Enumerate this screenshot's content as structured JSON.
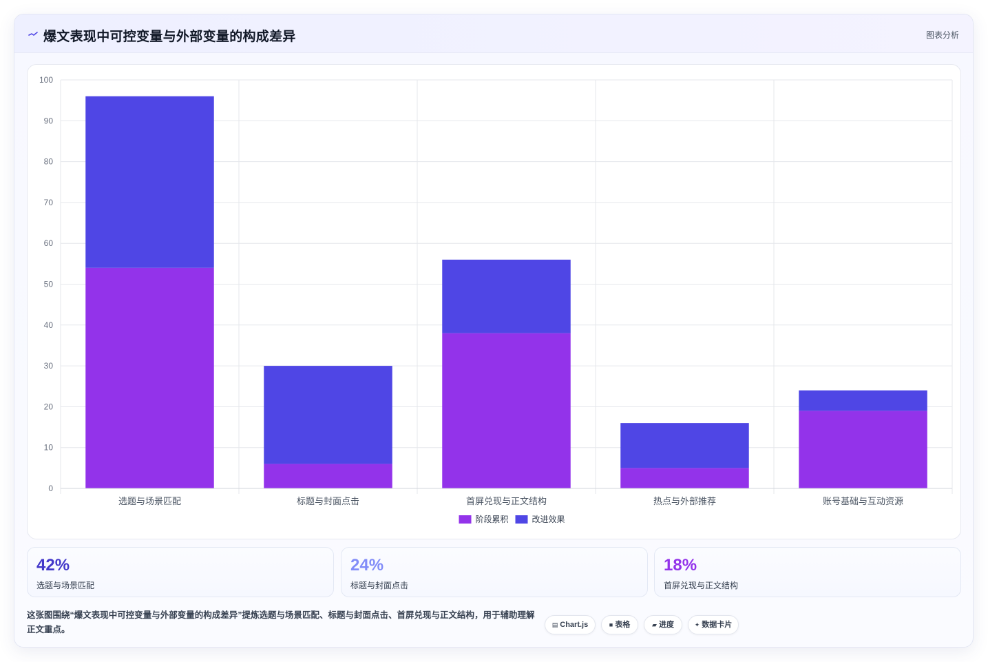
{
  "header": {
    "icon": "wave-line-icon",
    "title": "爆文表现中可控变量与外部变量的构成差异",
    "tag": "图表分析"
  },
  "chart_data": {
    "type": "bar",
    "stacked": true,
    "categories": [
      "选题与场景匹配",
      "标题与封面点击",
      "首屏兑现与正文结构",
      "热点与外部推荐",
      "账号基础与互动资源"
    ],
    "series": [
      {
        "name": "阶段累积",
        "color": "#9333ea",
        "values": [
          54,
          6,
          38,
          5,
          19
        ]
      },
      {
        "name": "改进效果",
        "color": "#4f46e5",
        "values": [
          42,
          24,
          18,
          11,
          5
        ]
      }
    ],
    "ylim": [
      0,
      100
    ],
    "yticks": [
      0,
      10,
      20,
      30,
      40,
      50,
      60,
      70,
      80,
      90,
      100
    ],
    "grid": true,
    "legend": "bottom"
  },
  "stats": [
    {
      "value": "42%",
      "label": "选题与场景匹配",
      "color": "#4338ca"
    },
    {
      "value": "24%",
      "label": "标题与封面点击",
      "color": "#818cf8"
    },
    {
      "value": "18%",
      "label": "首屏兑现与正文结构",
      "color": "#9333ea"
    }
  ],
  "footer": {
    "description": "这张图围绕“爆文表现中可控变量与外部变量的构成差异”提炼选题与场景匹配、标题与封面点击、首屏兑现与正文结构，用于辅助理解正文重点。",
    "chips": [
      {
        "icon": "chart-icon",
        "glyph": "▤",
        "label": "Chart.js"
      },
      {
        "icon": "table-icon",
        "glyph": "■",
        "label": "表格"
      },
      {
        "icon": "progress-icon",
        "glyph": "▰",
        "label": "进度"
      },
      {
        "icon": "sparkle-icon",
        "glyph": "✦",
        "label": "数据卡片"
      }
    ]
  }
}
